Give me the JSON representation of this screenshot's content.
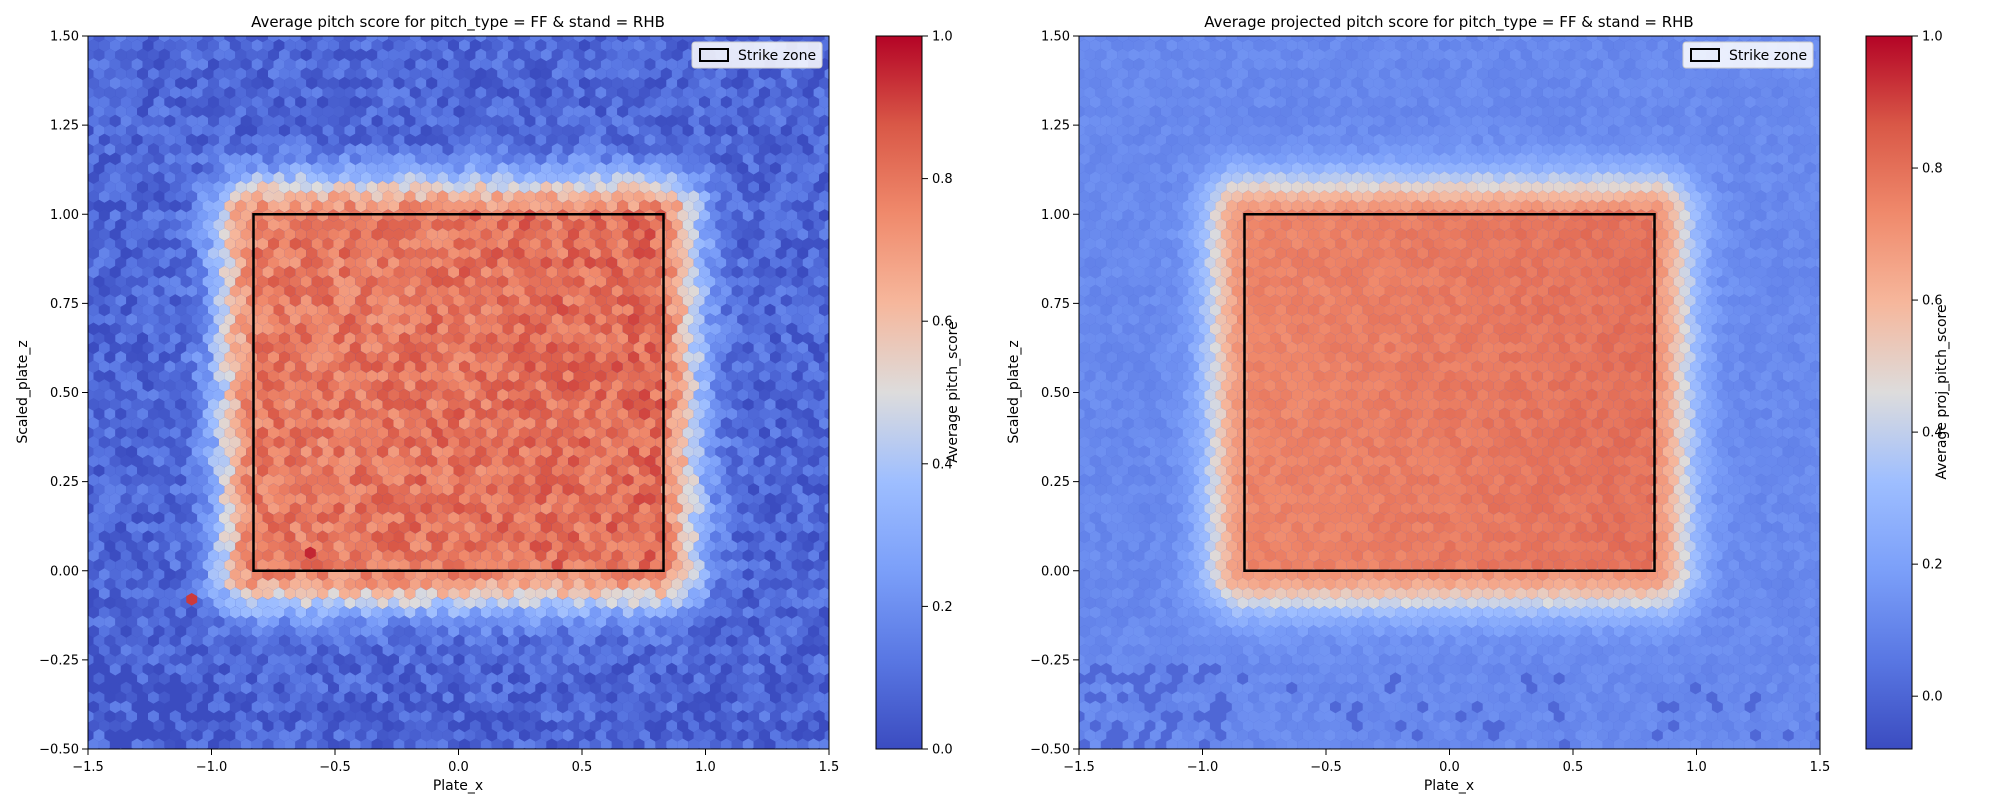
{
  "chart_data": [
    {
      "type": "heatmap",
      "hexbin": true,
      "title": "Average pitch score for pitch_type = FF & stand = RHB",
      "xlabel": "Plate_x",
      "ylabel": "Scaled_plate_z",
      "xlim": [
        -1.5,
        1.5
      ],
      "ylim": [
        -0.5,
        1.5
      ],
      "xticks": [
        "−1.5",
        "−1.0",
        "−0.5",
        "0.0",
        "0.5",
        "1.0",
        "1.5"
      ],
      "yticks": [
        "−0.50",
        "−0.25",
        "0.00",
        "0.25",
        "0.50",
        "0.75",
        "1.00",
        "1.25",
        "1.50"
      ],
      "colorbar": {
        "label": "Average pitch_score",
        "range": [
          0.0,
          1.0
        ],
        "ticks": [
          "0.0",
          "0.2",
          "0.4",
          "0.6",
          "0.8",
          "1.0"
        ],
        "colormap": "coolwarm"
      },
      "legend": {
        "label": "Strike zone",
        "placement": "top-right"
      },
      "strike_zone": {
        "x": [
          -0.83,
          0.83
        ],
        "z": [
          0.0,
          1.0
        ]
      },
      "surface": {
        "inside_zone_value": 0.78,
        "zone_right_side_value": 0.82,
        "edge_halo_value": 0.5,
        "outside_value": 0.08,
        "noise": "high"
      },
      "outliers": [
        {
          "x": -0.6,
          "z": 0.05,
          "value": 0.95
        },
        {
          "x": -1.08,
          "z": -0.08,
          "value": 0.92
        }
      ]
    },
    {
      "type": "heatmap",
      "hexbin": true,
      "title": "Average projected pitch score for pitch_type = FF & stand = RHB",
      "xlabel": "Plate_x",
      "ylabel": "Scaled_plate_z",
      "xlim": [
        -1.5,
        1.5
      ],
      "ylim": [
        -0.5,
        1.5
      ],
      "xticks": [
        "−1.5",
        "−1.0",
        "−0.5",
        "0.0",
        "0.5",
        "1.0",
        "1.5"
      ],
      "yticks": [
        "−0.50",
        "−0.25",
        "0.00",
        "0.25",
        "0.50",
        "0.75",
        "1.00",
        "1.25",
        "1.50"
      ],
      "colorbar": {
        "label": "Average proj_pitch_score",
        "range": [
          -0.08,
          1.0
        ],
        "ticks": [
          "0.0",
          "0.2",
          "0.4",
          "0.6",
          "0.8",
          "1.0"
        ],
        "colormap": "coolwarm"
      },
      "legend": {
        "label": "Strike zone",
        "placement": "top-right"
      },
      "strike_zone": {
        "x": [
          -0.83,
          0.83
        ],
        "z": [
          0.0,
          1.0
        ]
      },
      "surface": {
        "inside_zone_value": 0.74,
        "zone_right_side_value": 0.8,
        "edge_halo_value": 0.45,
        "outside_value": 0.12,
        "noise": "low"
      },
      "outliers": []
    }
  ]
}
